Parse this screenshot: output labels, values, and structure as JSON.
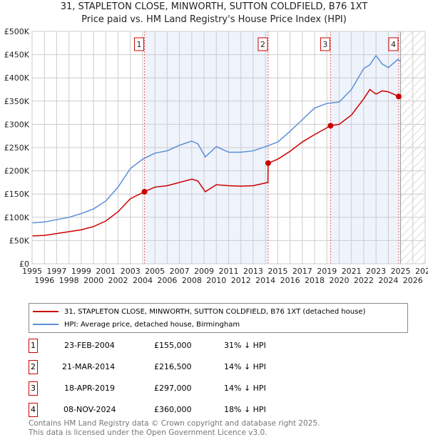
{
  "chart_data": {
    "type": "line",
    "title": "31, STAPLETON CLOSE, MINWORTH, SUTTON COLDFIELD, B76 1XT",
    "subtitle": "Price paid vs. HM Land Registry's House Price Index (HPI)",
    "xlim": [
      1995,
      2027
    ],
    "ylim": [
      0,
      500000
    ],
    "x_ticks": [
      "1995",
      "1996",
      "1997",
      "1998",
      "1999",
      "2000",
      "2001",
      "2002",
      "2003",
      "2004",
      "2005",
      "2006",
      "2007",
      "2008",
      "2009",
      "2010",
      "2011",
      "2012",
      "2013",
      "2014",
      "2015",
      "2016",
      "2017",
      "2018",
      "2019",
      "2020",
      "2021",
      "2022",
      "2023",
      "2024",
      "2025",
      "2026",
      "2027"
    ],
    "y_ticks": [
      "£0",
      "£50K",
      "£100K",
      "£150K",
      "£200K",
      "£250K",
      "£300K",
      "£350K",
      "£400K",
      "£450K",
      "£500K"
    ],
    "grid": true,
    "colors": {
      "property": "#cc0000",
      "hpi": "#5b8fd6",
      "shade": "#eef3fc"
    },
    "series": [
      {
        "name": "31, STAPLETON CLOSE, MINWORTH, SUTTON COLDFIELD, B76 1XT (detached house)",
        "x": [
          1995,
          1996,
          1997,
          1998,
          1999,
          2000,
          2001,
          2002,
          2003,
          2004.15,
          2005,
          2006,
          2007,
          2008,
          2008.5,
          2009.1,
          2010,
          2011,
          2012,
          2013,
          2014.2,
          2014.22,
          2015,
          2016,
          2017,
          2018,
          2019.3,
          2020,
          2021,
          2022,
          2022.5,
          2023,
          2023.5,
          2024,
          2024.85
        ],
        "y": [
          60000,
          61000,
          65000,
          69000,
          73000,
          80000,
          92000,
          112000,
          140000,
          155000,
          165000,
          168000,
          175000,
          182000,
          178000,
          155000,
          170000,
          168000,
          167000,
          168000,
          175000,
          216500,
          225000,
          242000,
          262000,
          278000,
          297000,
          300000,
          320000,
          355000,
          375000,
          365000,
          372000,
          370000,
          360000
        ]
      },
      {
        "name": "HPI: Average price, detached house, Birmingham",
        "x": [
          1995,
          1996,
          1997,
          1998,
          1999,
          2000,
          2001,
          2002,
          2003,
          2004,
          2005,
          2006,
          2007,
          2008,
          2008.5,
          2009.1,
          2010,
          2011,
          2012,
          2013,
          2014,
          2015,
          2016,
          2017,
          2018,
          2019,
          2020,
          2021,
          2022,
          2022.5,
          2023,
          2023.5,
          2024,
          2024.8,
          2025
        ],
        "y": [
          88000,
          90000,
          95000,
          100000,
          108000,
          118000,
          135000,
          165000,
          205000,
          225000,
          238000,
          243000,
          255000,
          264000,
          258000,
          230000,
          252000,
          240000,
          240000,
          243000,
          252000,
          262000,
          285000,
          310000,
          335000,
          345000,
          348000,
          375000,
          420000,
          428000,
          448000,
          430000,
          422000,
          440000,
          435000
        ]
      }
    ],
    "sales": [
      {
        "id": "1",
        "x": 2004.15,
        "date": "23-FEB-2004",
        "price": "£155,000",
        "value": 155000,
        "hpi": "31% ↓ HPI"
      },
      {
        "id": "2",
        "x": 2014.22,
        "date": "21-MAR-2014",
        "price": "£216,500",
        "value": 216500,
        "hpi": "14% ↓ HPI"
      },
      {
        "id": "3",
        "x": 2019.3,
        "date": "18-APR-2019",
        "price": "£297,000",
        "value": 297000,
        "hpi": "14% ↓ HPI"
      },
      {
        "id": "4",
        "x": 2024.85,
        "date": "08-NOV-2024",
        "price": "£360,000",
        "value": 360000,
        "hpi": "18% ↓ HPI"
      }
    ],
    "shaded_ranges": [
      [
        2004.15,
        2014.22
      ],
      [
        2019.3,
        2024.85
      ]
    ],
    "forecast_start": 2025
  },
  "footer": {
    "line1": "Contains HM Land Registry data © Crown copyright and database right 2025.",
    "line2": "This data is licensed under the Open Government Licence v3.0."
  }
}
